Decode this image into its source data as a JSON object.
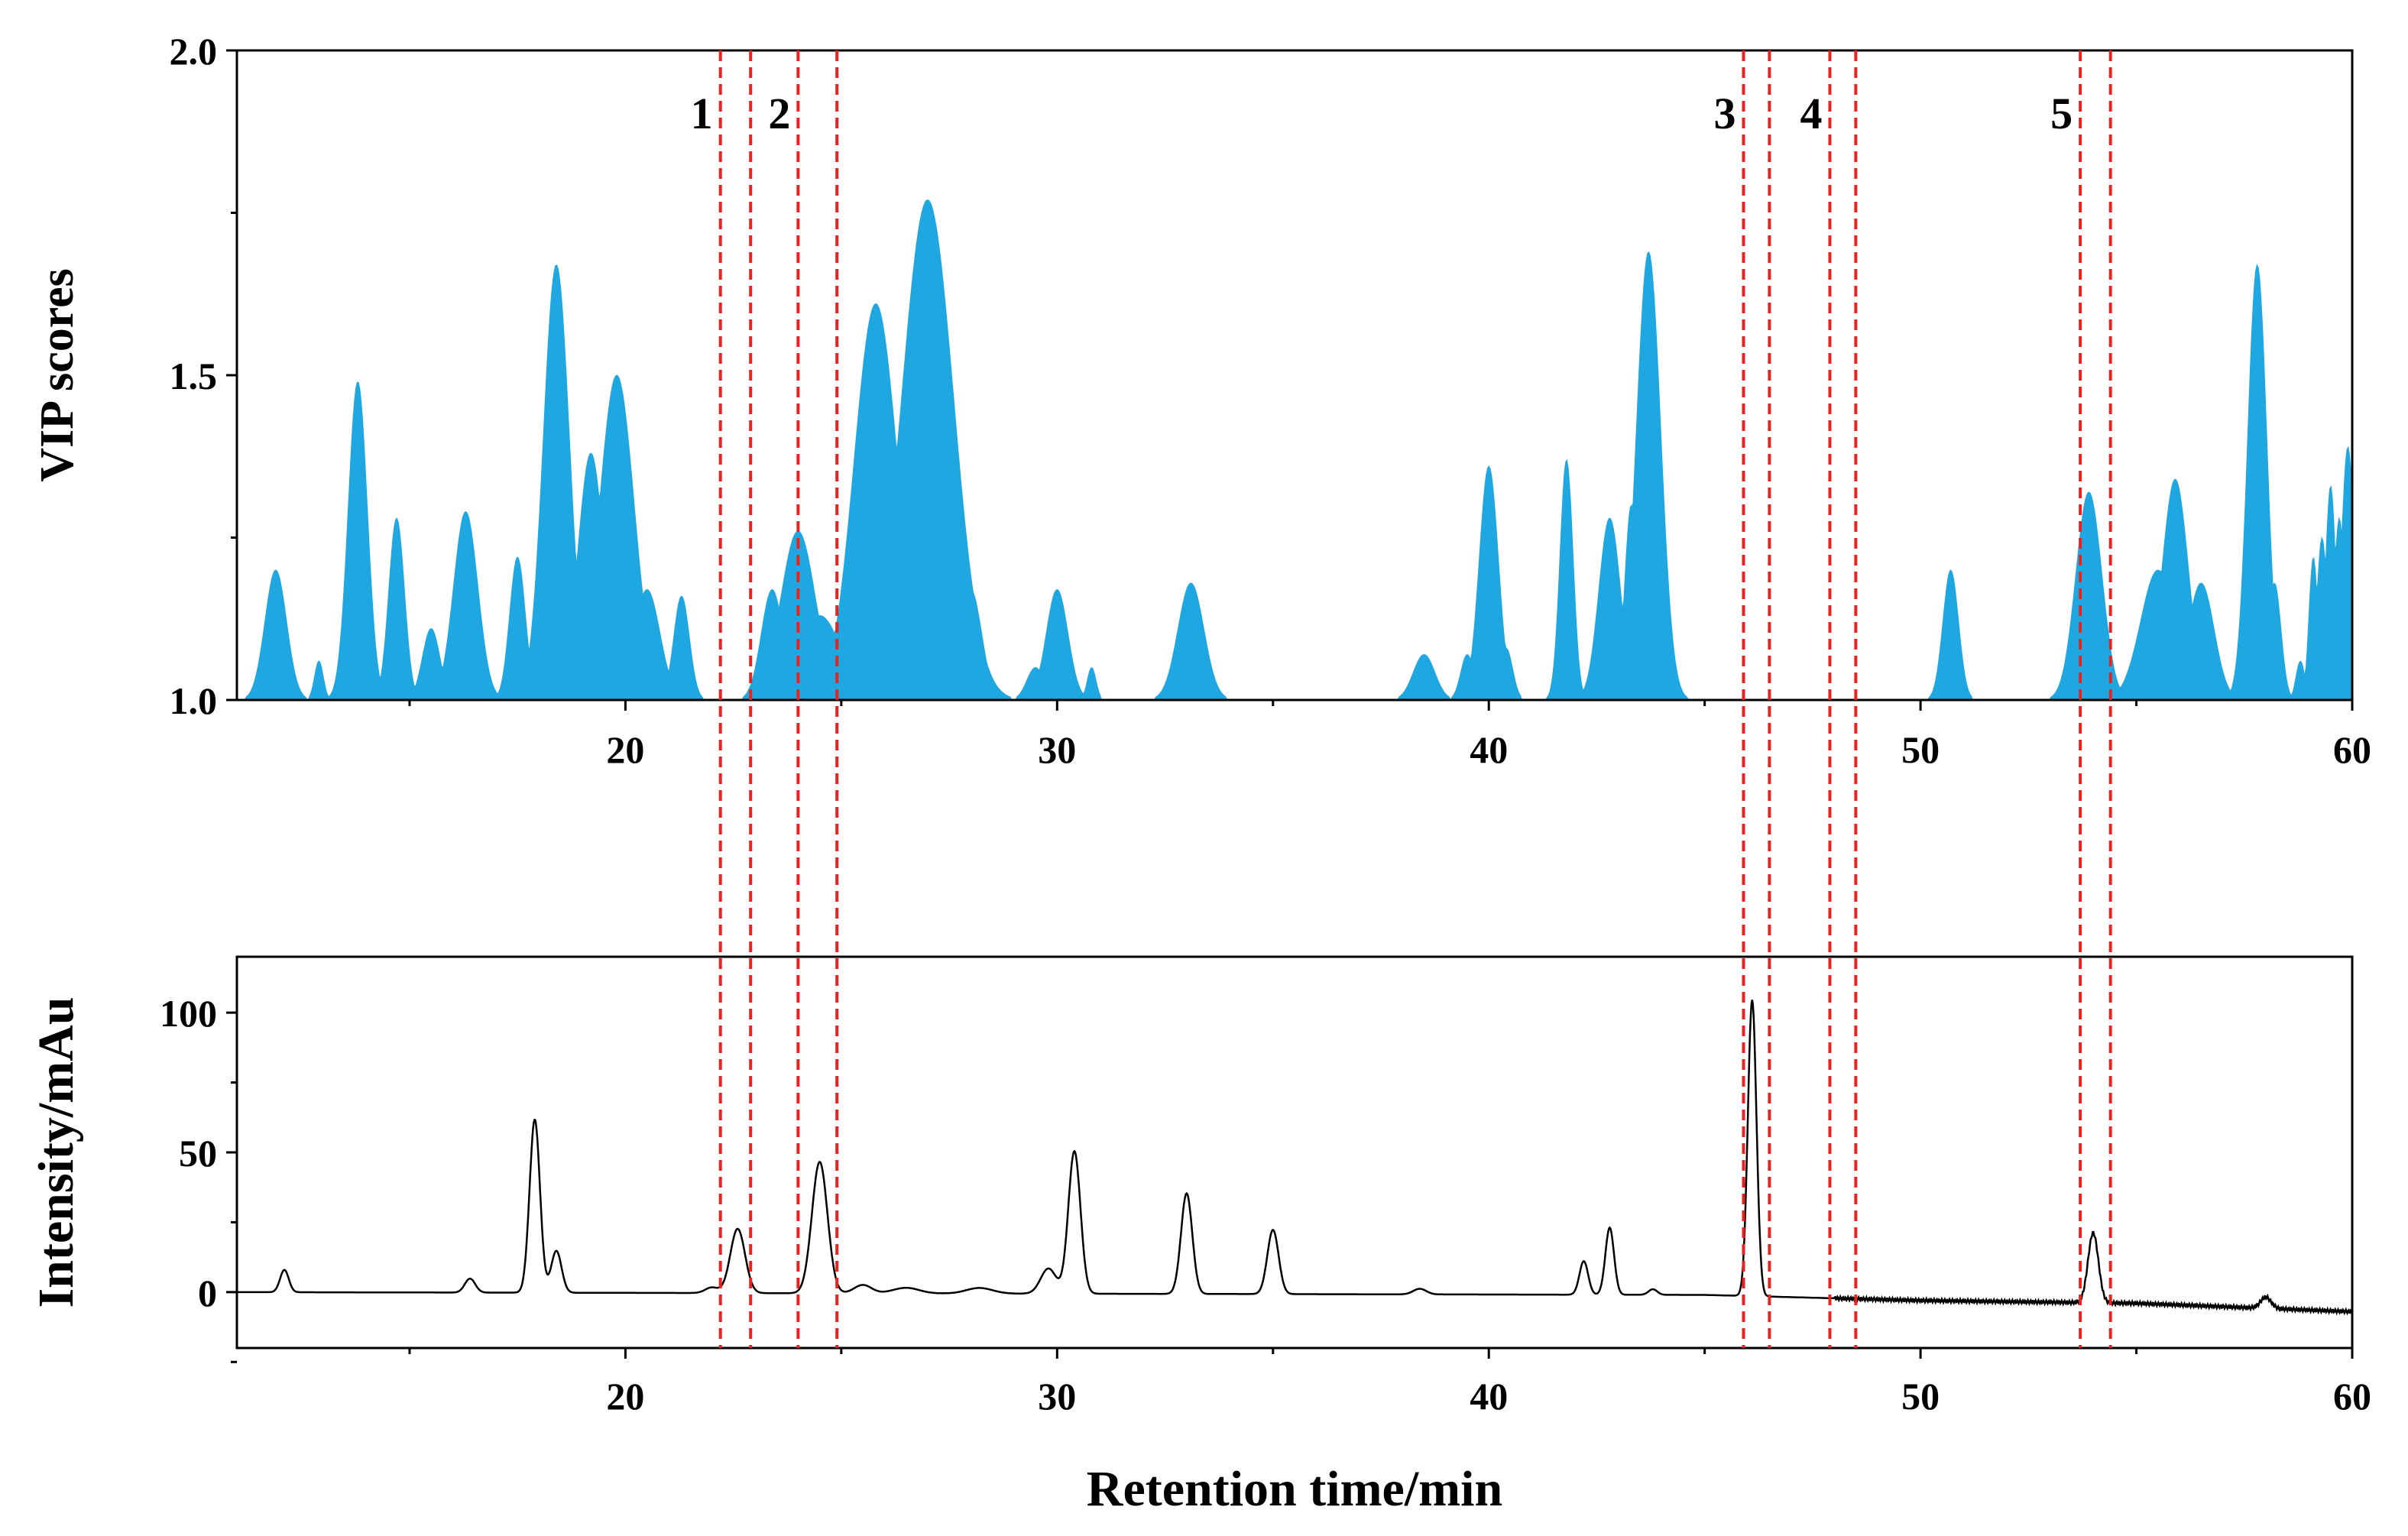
{
  "colors": {
    "vip_fill": "#1ea7e1",
    "chromatogram": "#000000",
    "guide_lines": "#e8231f",
    "axes": "#000000"
  },
  "chart_data": [
    {
      "type": "area",
      "name": "vip-panel",
      "ylabel": "VIP scores",
      "xlim": [
        11,
        60
      ],
      "ylim": [
        1.0,
        2.0
      ],
      "xticks": [
        20,
        30,
        40,
        50,
        60
      ],
      "yticks": [
        1.0,
        1.5,
        2.0
      ],
      "ytick_labels": [
        "1.0",
        "1.5",
        "2.0"
      ],
      "baseline": 1.0,
      "peaks": [
        {
          "c": 11.9,
          "h": 1.2,
          "w": 0.25
        },
        {
          "c": 12.9,
          "h": 1.06,
          "w": 0.1
        },
        {
          "c": 13.8,
          "h": 1.49,
          "w": 0.22
        },
        {
          "c": 14.7,
          "h": 1.28,
          "w": 0.18
        },
        {
          "c": 15.5,
          "h": 1.11,
          "w": 0.2
        },
        {
          "c": 16.3,
          "h": 1.29,
          "w": 0.28
        },
        {
          "c": 17.5,
          "h": 1.22,
          "w": 0.18
        },
        {
          "c": 18.4,
          "h": 1.67,
          "w": 0.3
        },
        {
          "c": 19.2,
          "h": 1.38,
          "w": 0.3
        },
        {
          "c": 19.8,
          "h": 1.5,
          "w": 0.4
        },
        {
          "c": 20.5,
          "h": 1.17,
          "w": 0.3
        },
        {
          "c": 21.3,
          "h": 1.16,
          "w": 0.18
        },
        {
          "c": 23.4,
          "h": 1.17,
          "w": 0.25
        },
        {
          "c": 24.0,
          "h": 1.26,
          "w": 0.4
        },
        {
          "c": 24.5,
          "h": 1.13,
          "w": 0.5
        },
        {
          "c": 25.8,
          "h": 1.61,
          "w": 0.5
        },
        {
          "c": 27.0,
          "h": 1.77,
          "w": 0.6
        },
        {
          "c": 28.0,
          "h": 1.17,
          "w": 0.25
        },
        {
          "c": 29.5,
          "h": 1.05,
          "w": 0.2
        },
        {
          "c": 30.0,
          "h": 1.17,
          "w": 0.25
        },
        {
          "c": 30.8,
          "h": 1.05,
          "w": 0.1
        },
        {
          "c": 33.1,
          "h": 1.18,
          "w": 0.3
        },
        {
          "c": 38.5,
          "h": 1.07,
          "w": 0.25
        },
        {
          "c": 39.5,
          "h": 1.07,
          "w": 0.15
        },
        {
          "c": 40.0,
          "h": 1.36,
          "w": 0.22
        },
        {
          "c": 40.4,
          "h": 1.08,
          "w": 0.15
        },
        {
          "c": 41.8,
          "h": 1.37,
          "w": 0.15
        },
        {
          "c": 42.8,
          "h": 1.28,
          "w": 0.25
        },
        {
          "c": 43.3,
          "h": 1.3,
          "w": 0.15
        },
        {
          "c": 43.7,
          "h": 1.69,
          "w": 0.28
        },
        {
          "c": 50.7,
          "h": 1.2,
          "w": 0.18
        },
        {
          "c": 53.9,
          "h": 1.32,
          "w": 0.3
        },
        {
          "c": 54.4,
          "h": 1.02,
          "w": 0.1
        },
        {
          "c": 55.5,
          "h": 1.2,
          "w": 0.4
        },
        {
          "c": 55.9,
          "h": 1.34,
          "w": 0.3
        },
        {
          "c": 56.5,
          "h": 1.18,
          "w": 0.3
        },
        {
          "c": 57.0,
          "h": 1.03,
          "w": 0.1
        },
        {
          "c": 57.8,
          "h": 1.67,
          "w": 0.22
        },
        {
          "c": 58.2,
          "h": 1.18,
          "w": 0.15
        },
        {
          "c": 58.8,
          "h": 1.06,
          "w": 0.1
        },
        {
          "c": 59.1,
          "h": 1.22,
          "w": 0.1
        },
        {
          "c": 59.3,
          "h": 1.25,
          "w": 0.12
        },
        {
          "c": 59.5,
          "h": 1.33,
          "w": 0.12
        },
        {
          "c": 59.7,
          "h": 1.28,
          "w": 0.12
        },
        {
          "c": 59.9,
          "h": 1.39,
          "w": 0.15
        }
      ]
    },
    {
      "type": "line",
      "name": "chromatogram-panel",
      "xlabel": "Retention time/min",
      "ylabel": "Intensity/mAu",
      "xlim": [
        11,
        60
      ],
      "ylim": [
        -20,
        120
      ],
      "xticks": [
        20,
        30,
        40,
        50,
        60
      ],
      "yticks": [
        0,
        50,
        100
      ],
      "ytick_labels": [
        "0",
        "50",
        "100"
      ],
      "baseline_drift": [
        [
          11,
          0
        ],
        [
          45,
          -1
        ],
        [
          50,
          -3
        ],
        [
          55,
          -4
        ],
        [
          60,
          -7
        ]
      ],
      "peaks": [
        {
          "rt": 12.1,
          "h": 8,
          "w": 0.1
        },
        {
          "rt": 16.4,
          "h": 5,
          "w": 0.12
        },
        {
          "rt": 17.9,
          "h": 62,
          "w": 0.12
        },
        {
          "rt": 18.4,
          "h": 15,
          "w": 0.12
        },
        {
          "rt": 22.0,
          "h": 2,
          "w": 0.15
        },
        {
          "rt": 22.6,
          "h": 23,
          "w": 0.17
        },
        {
          "rt": 24.5,
          "h": 47,
          "w": 0.18
        },
        {
          "rt": 25.5,
          "h": 3,
          "w": 0.2
        },
        {
          "rt": 26.5,
          "h": 2,
          "w": 0.3
        },
        {
          "rt": 28.2,
          "h": 2,
          "w": 0.3
        },
        {
          "rt": 29.8,
          "h": 9,
          "w": 0.18
        },
        {
          "rt": 30.4,
          "h": 51,
          "w": 0.14
        },
        {
          "rt": 33.0,
          "h": 36,
          "w": 0.13
        },
        {
          "rt": 35.0,
          "h": 23,
          "w": 0.13
        },
        {
          "rt": 38.4,
          "h": 2,
          "w": 0.15
        },
        {
          "rt": 42.2,
          "h": 12,
          "w": 0.1
        },
        {
          "rt": 42.8,
          "h": 24,
          "w": 0.1
        },
        {
          "rt": 43.8,
          "h": 2,
          "w": 0.1
        },
        {
          "rt": 46.1,
          "h": 106,
          "w": 0.1
        },
        {
          "rt": 54.0,
          "h": 25,
          "w": 0.12
        },
        {
          "rt": 58.0,
          "h": 4,
          "w": 0.12
        }
      ]
    }
  ],
  "regions": [
    {
      "label": "1",
      "start": 22.2,
      "end": 22.9
    },
    {
      "label": "2",
      "start": 24.0,
      "end": 24.9
    },
    {
      "label": "3",
      "start": 45.9,
      "end": 46.5
    },
    {
      "label": "4",
      "start": 47.9,
      "end": 48.5
    },
    {
      "label": "5",
      "start": 53.7,
      "end": 54.4
    }
  ]
}
